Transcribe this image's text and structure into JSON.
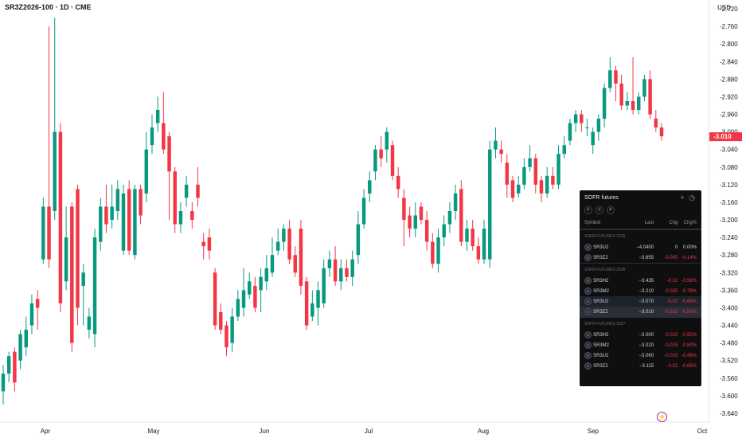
{
  "header": {
    "symbol_line": "SR3Z2026-100 · 1D · CME",
    "currency": "USD"
  },
  "price_axis": {
    "labels": [
      "-2.720",
      "-2.760",
      "-2.800",
      "-2.840",
      "-2.880",
      "-2.920",
      "-2.960",
      "-3.000",
      "-3.040",
      "-3.080",
      "-3.120",
      "-3.160",
      "-3.200",
      "-3.240",
      "-3.280",
      "-3.320",
      "-3.360",
      "-3.400",
      "-3.440",
      "-3.480",
      "-3.520",
      "-3.560",
      "-3.600",
      "-3.640"
    ],
    "last_price": "-3.010",
    "last_color": "#f23645"
  },
  "time_axis": {
    "labels": [
      "Apr",
      "May",
      "Jun",
      "Jul",
      "Aug",
      "Sep",
      "Oct"
    ]
  },
  "colors": {
    "up": "#089981",
    "down": "#f23645",
    "axis_text": "#131722"
  },
  "chart_data": {
    "type": "candlestick",
    "ylim": [
      -3.66,
      -2.7
    ],
    "up_color": "#089981",
    "down_color": "#f23645",
    "candles": [
      {
        "o": -3.59,
        "c": -3.55,
        "h": -3.53,
        "l": -3.62
      },
      {
        "o": -3.55,
        "c": -3.51,
        "h": -3.5,
        "l": -3.57
      },
      {
        "o": -3.5,
        "c": -3.57,
        "h": -3.49,
        "l": -3.59
      },
      {
        "o": -3.52,
        "c": -3.46,
        "h": -3.45,
        "l": -3.54
      },
      {
        "o": -3.49,
        "c": -3.45,
        "h": -3.42,
        "l": -3.51
      },
      {
        "o": -3.44,
        "c": -3.39,
        "h": -3.37,
        "l": -3.46
      },
      {
        "o": -3.38,
        "c": -3.4,
        "h": -3.36,
        "l": -3.45
      },
      {
        "o": -3.29,
        "c": -3.17,
        "h": -3.15,
        "l": -3.3
      },
      {
        "o": -3.17,
        "c": -3.29,
        "h": -2.76,
        "l": -3.31
      },
      {
        "o": -3.18,
        "c": -3.0,
        "h": -2.74,
        "l": -3.2
      },
      {
        "o": -3.0,
        "c": -3.39,
        "h": -2.98,
        "l": -3.41
      },
      {
        "o": -3.34,
        "c": -3.24,
        "h": -3.17,
        "l": -3.36
      },
      {
        "o": -3.17,
        "c": -3.48,
        "h": -3.16,
        "l": -3.5
      },
      {
        "o": -3.13,
        "c": -3.4,
        "h": -3.12,
        "l": -3.44
      },
      {
        "o": -3.35,
        "c": -3.32,
        "h": -3.3,
        "l": -3.44
      },
      {
        "o": -3.45,
        "c": -3.42,
        "h": -3.4,
        "l": -3.47
      },
      {
        "o": -3.46,
        "c": -3.24,
        "h": -3.22,
        "l": -3.49
      },
      {
        "o": -3.25,
        "c": -3.17,
        "h": -3.15,
        "l": -3.27
      },
      {
        "o": -3.17,
        "c": -3.21,
        "h": -3.12,
        "l": -3.23
      },
      {
        "o": -3.2,
        "c": -3.17,
        "h": -3.12,
        "l": -3.22
      },
      {
        "o": -3.18,
        "c": -3.13,
        "h": -3.11,
        "l": -3.2
      },
      {
        "o": -3.27,
        "c": -3.14,
        "h": -3.12,
        "l": -3.28
      },
      {
        "o": -3.13,
        "c": -3.27,
        "h": -3.11,
        "l": -3.28
      },
      {
        "o": -3.28,
        "c": -3.13,
        "h": -3.12,
        "l": -3.29
      },
      {
        "o": -3.13,
        "c": -3.19,
        "h": -3.12,
        "l": -3.21
      },
      {
        "o": -3.14,
        "c": -3.04,
        "h": -3.0,
        "l": -3.16
      },
      {
        "o": -3.03,
        "c": -2.99,
        "h": -2.96,
        "l": -3.05
      },
      {
        "o": -2.98,
        "c": -2.95,
        "h": -2.92,
        "l": -3.0
      },
      {
        "o": -2.98,
        "c": -3.04,
        "h": -2.91,
        "l": -3.05
      },
      {
        "o": -3.01,
        "c": -3.09,
        "h": -3.0,
        "l": -3.2
      },
      {
        "o": -3.09,
        "c": -3.21,
        "h": -3.08,
        "l": -3.23
      },
      {
        "o": -3.21,
        "c": -3.18,
        "h": -3.16,
        "l": -3.23
      },
      {
        "o": -3.15,
        "c": -3.12,
        "h": -3.1,
        "l": -3.17
      },
      {
        "o": -3.18,
        "c": -3.2,
        "h": -3.16,
        "l": -3.22
      },
      {
        "o": -3.12,
        "c": -3.15,
        "h": -3.08,
        "l": -3.17
      },
      {
        "o": -3.25,
        "c": -3.26,
        "h": -3.23,
        "l": -3.29
      },
      {
        "o": -3.24,
        "c": -3.27,
        "h": -3.22,
        "l": -3.29
      },
      {
        "o": -3.32,
        "c": -3.44,
        "h": -3.31,
        "l": -3.45
      },
      {
        "o": -3.41,
        "c": -3.45,
        "h": -3.39,
        "l": -3.46
      },
      {
        "o": -3.44,
        "c": -3.49,
        "h": -3.43,
        "l": -3.51
      },
      {
        "o": -3.48,
        "c": -3.42,
        "h": -3.4,
        "l": -3.5
      },
      {
        "o": -3.42,
        "c": -3.38,
        "h": -3.36,
        "l": -3.43
      },
      {
        "o": -3.4,
        "c": -3.36,
        "h": -3.31,
        "l": -3.42
      },
      {
        "o": -3.37,
        "c": -3.34,
        "h": -3.32,
        "l": -3.38
      },
      {
        "o": -3.35,
        "c": -3.4,
        "h": -3.33,
        "l": -3.41
      },
      {
        "o": -3.36,
        "c": -3.33,
        "h": -3.31,
        "l": -3.41
      },
      {
        "o": -3.34,
        "c": -3.31,
        "h": -3.28,
        "l": -3.36
      },
      {
        "o": -3.32,
        "c": -3.28,
        "h": -3.24,
        "l": -3.33
      },
      {
        "o": -3.27,
        "c": -3.25,
        "h": -3.22,
        "l": -3.28
      },
      {
        "o": -3.25,
        "c": -3.22,
        "h": -3.21,
        "l": -3.27
      },
      {
        "o": -3.22,
        "c": -3.29,
        "h": -3.2,
        "l": -3.3
      },
      {
        "o": -3.28,
        "c": -3.32,
        "h": -3.26,
        "l": -3.33
      },
      {
        "o": -3.22,
        "c": -3.35,
        "h": -3.2,
        "l": -3.37
      },
      {
        "o": -3.34,
        "c": -3.44,
        "h": -3.33,
        "l": -3.45
      },
      {
        "o": -3.42,
        "c": -3.39,
        "h": -3.36,
        "l": -3.43
      },
      {
        "o": -3.4,
        "c": -3.36,
        "h": -3.34,
        "l": -3.44
      },
      {
        "o": -3.39,
        "c": -3.31,
        "h": -3.29,
        "l": -3.4
      },
      {
        "o": -3.31,
        "c": -3.29,
        "h": -3.27,
        "l": -3.33
      },
      {
        "o": -3.29,
        "c": -3.34,
        "h": -3.26,
        "l": -3.35
      },
      {
        "o": -3.34,
        "c": -3.31,
        "h": -3.29,
        "l": -3.36
      },
      {
        "o": -3.31,
        "c": -3.33,
        "h": -3.29,
        "l": -3.34
      },
      {
        "o": -3.33,
        "c": -3.29,
        "h": -3.27,
        "l": -3.35
      },
      {
        "o": -3.28,
        "c": -3.21,
        "h": -3.18,
        "l": -3.3
      },
      {
        "o": -3.21,
        "c": -3.15,
        "h": -3.13,
        "l": -3.22
      },
      {
        "o": -3.14,
        "c": -3.11,
        "h": -3.09,
        "l": -3.16
      },
      {
        "o": -3.09,
        "c": -3.04,
        "h": -3.03,
        "l": -3.11
      },
      {
        "o": -3.04,
        "c": -3.06,
        "h": -3.01,
        "l": -3.08
      },
      {
        "o": -3.04,
        "c": -3.0,
        "h": -2.99,
        "l": -3.07
      },
      {
        "o": -3.03,
        "c": -3.1,
        "h": -3.02,
        "l": -3.11
      },
      {
        "o": -3.1,
        "c": -3.13,
        "h": -3.08,
        "l": -3.15
      },
      {
        "o": -3.15,
        "c": -3.2,
        "h": -3.13,
        "l": -3.26
      },
      {
        "o": -3.19,
        "c": -3.22,
        "h": -3.17,
        "l": -3.24
      },
      {
        "o": -3.22,
        "c": -3.19,
        "h": -3.16,
        "l": -3.24
      },
      {
        "o": -3.17,
        "c": -3.2,
        "h": -3.16,
        "l": -3.21
      },
      {
        "o": -3.2,
        "c": -3.25,
        "h": -3.18,
        "l": -3.27
      },
      {
        "o": -3.25,
        "c": -3.3,
        "h": -3.23,
        "l": -3.31
      },
      {
        "o": -3.3,
        "c": -3.24,
        "h": -3.22,
        "l": -3.32
      },
      {
        "o": -3.24,
        "c": -3.21,
        "h": -3.19,
        "l": -3.26
      },
      {
        "o": -3.21,
        "c": -3.18,
        "h": -3.16,
        "l": -3.23
      },
      {
        "o": -3.18,
        "c": -3.14,
        "h": -3.12,
        "l": -3.2
      },
      {
        "o": -3.13,
        "c": -3.25,
        "h": -3.11,
        "l": -3.26
      },
      {
        "o": -3.25,
        "c": -3.22,
        "h": -3.2,
        "l": -3.27
      },
      {
        "o": -3.22,
        "c": -3.26,
        "h": -3.2,
        "l": -3.27
      },
      {
        "o": -3.26,
        "c": -3.29,
        "h": -3.24,
        "l": -3.3
      },
      {
        "o": -3.29,
        "c": -3.22,
        "h": -3.2,
        "l": -3.3
      },
      {
        "o": -3.29,
        "c": -3.04,
        "h": -3.02,
        "l": -3.31
      },
      {
        "o": -3.04,
        "c": -3.02,
        "h": -2.99,
        "l": -3.06
      },
      {
        "o": -3.04,
        "c": -3.05,
        "h": -3.02,
        "l": -3.07
      },
      {
        "o": -3.07,
        "c": -3.12,
        "h": -3.05,
        "l": -3.15
      },
      {
        "o": -3.11,
        "c": -3.15,
        "h": -3.1,
        "l": -3.16
      },
      {
        "o": -3.14,
        "c": -3.12,
        "h": -3.1,
        "l": -3.15
      },
      {
        "o": -3.12,
        "c": -3.08,
        "h": -3.06,
        "l": -3.13
      },
      {
        "o": -3.08,
        "c": -3.06,
        "h": -3.03,
        "l": -3.09
      },
      {
        "o": -3.06,
        "c": -3.12,
        "h": -3.05,
        "l": -3.14
      },
      {
        "o": -3.11,
        "c": -3.14,
        "h": -3.1,
        "l": -3.16
      },
      {
        "o": -3.14,
        "c": -3.1,
        "h": -3.08,
        "l": -3.15
      },
      {
        "o": -3.1,
        "c": -3.12,
        "h": -3.08,
        "l": -3.13
      },
      {
        "o": -3.12,
        "c": -3.05,
        "h": -3.03,
        "l": -3.13
      },
      {
        "o": -3.05,
        "c": -3.03,
        "h": -3.01,
        "l": -3.06
      },
      {
        "o": -3.02,
        "c": -2.98,
        "h": -2.97,
        "l": -3.03
      },
      {
        "o": -2.98,
        "c": -2.96,
        "h": -2.95,
        "l": -3.0
      },
      {
        "o": -2.96,
        "c": -2.98,
        "h": -2.95,
        "l": -3.0
      },
      {
        "o": -2.99,
        "c": -2.99,
        "h": -2.97,
        "l": -3.01
      },
      {
        "o": -3.03,
        "c": -3.0,
        "h": -2.99,
        "l": -3.05
      },
      {
        "o": -3.0,
        "c": -2.97,
        "h": -2.96,
        "l": -3.02
      },
      {
        "o": -2.97,
        "c": -2.9,
        "h": -2.89,
        "l": -2.99
      },
      {
        "o": -2.9,
        "c": -2.86,
        "h": -2.83,
        "l": -2.91
      },
      {
        "o": -2.86,
        "c": -2.89,
        "h": -2.85,
        "l": -2.93
      },
      {
        "o": -2.89,
        "c": -2.94,
        "h": -2.87,
        "l": -2.95
      },
      {
        "o": -2.94,
        "c": -2.93,
        "h": -2.91,
        "l": -2.95
      },
      {
        "o": -2.93,
        "c": -2.95,
        "h": -2.83,
        "l": -2.96
      },
      {
        "o": -2.95,
        "c": -2.92,
        "h": -2.91,
        "l": -2.96
      },
      {
        "o": -2.92,
        "c": -2.88,
        "h": -2.87,
        "l": -2.93
      },
      {
        "o": -2.88,
        "c": -2.96,
        "h": -2.86,
        "l": -2.97
      },
      {
        "o": -2.97,
        "c": -2.99,
        "h": -2.95,
        "l": -3.0
      },
      {
        "o": -2.99,
        "c": -3.01,
        "h": -2.98,
        "l": -3.02
      }
    ]
  },
  "watchlist": {
    "title": "SOFR futures",
    "filters": [
      "F",
      "C",
      "P"
    ],
    "columns": {
      "symbol": "Symbol",
      "last": "Last",
      "chg": "Chg",
      "chgp": "Chg%"
    },
    "sections": [
      {
        "title": "SOFR FUTURES 2025",
        "rows": [
          {
            "sym": "SR3U2",
            "last": "−4.0400",
            "chg": "0",
            "chgp": "0.00%",
            "dir": "flat",
            "cls": ""
          },
          {
            "sym": "SR3Z2",
            "last": "−3.655",
            "chg": "-0.005",
            "chgp": "-0.14%",
            "dir": "down",
            "cls": ""
          }
        ]
      },
      {
        "title": "SOFR FUTURES 2026",
        "rows": [
          {
            "sym": "SR3H2",
            "last": "−3.435",
            "chg": "-0.02",
            "chgp": "-0.59%",
            "dir": "down",
            "cls": ""
          },
          {
            "sym": "SR3M2",
            "last": "−3.210",
            "chg": "-0.025",
            "chgp": "-0.78%",
            "dir": "down",
            "cls": ""
          },
          {
            "sym": "SR3U2",
            "last": "−3.070",
            "chg": "-0.02",
            "chgp": "-0.66%",
            "dir": "down",
            "cls": "dim"
          },
          {
            "sym": "SR3Z2",
            "last": "−3.010",
            "chg": "-0.015",
            "chgp": "-0.50%",
            "dir": "down",
            "cls": "sel"
          }
        ]
      },
      {
        "title": "SOFR FUTURES 2027",
        "rows": [
          {
            "sym": "SR3H2",
            "last": "−3.000",
            "chg": "-0.015",
            "chgp": "-0.50%",
            "dir": "down",
            "cls": ""
          },
          {
            "sym": "SR3M2",
            "last": "−3.020",
            "chg": "-0.015",
            "chgp": "-0.50%",
            "dir": "down",
            "cls": ""
          },
          {
            "sym": "SR3U2",
            "last": "−3.060",
            "chg": "-0.015",
            "chgp": "-0.49%",
            "dir": "down",
            "cls": ""
          },
          {
            "sym": "SR3Z2",
            "last": "−3.115",
            "chg": "-0.02",
            "chgp": "-0.65%",
            "dir": "down",
            "cls": ""
          }
        ]
      }
    ]
  }
}
